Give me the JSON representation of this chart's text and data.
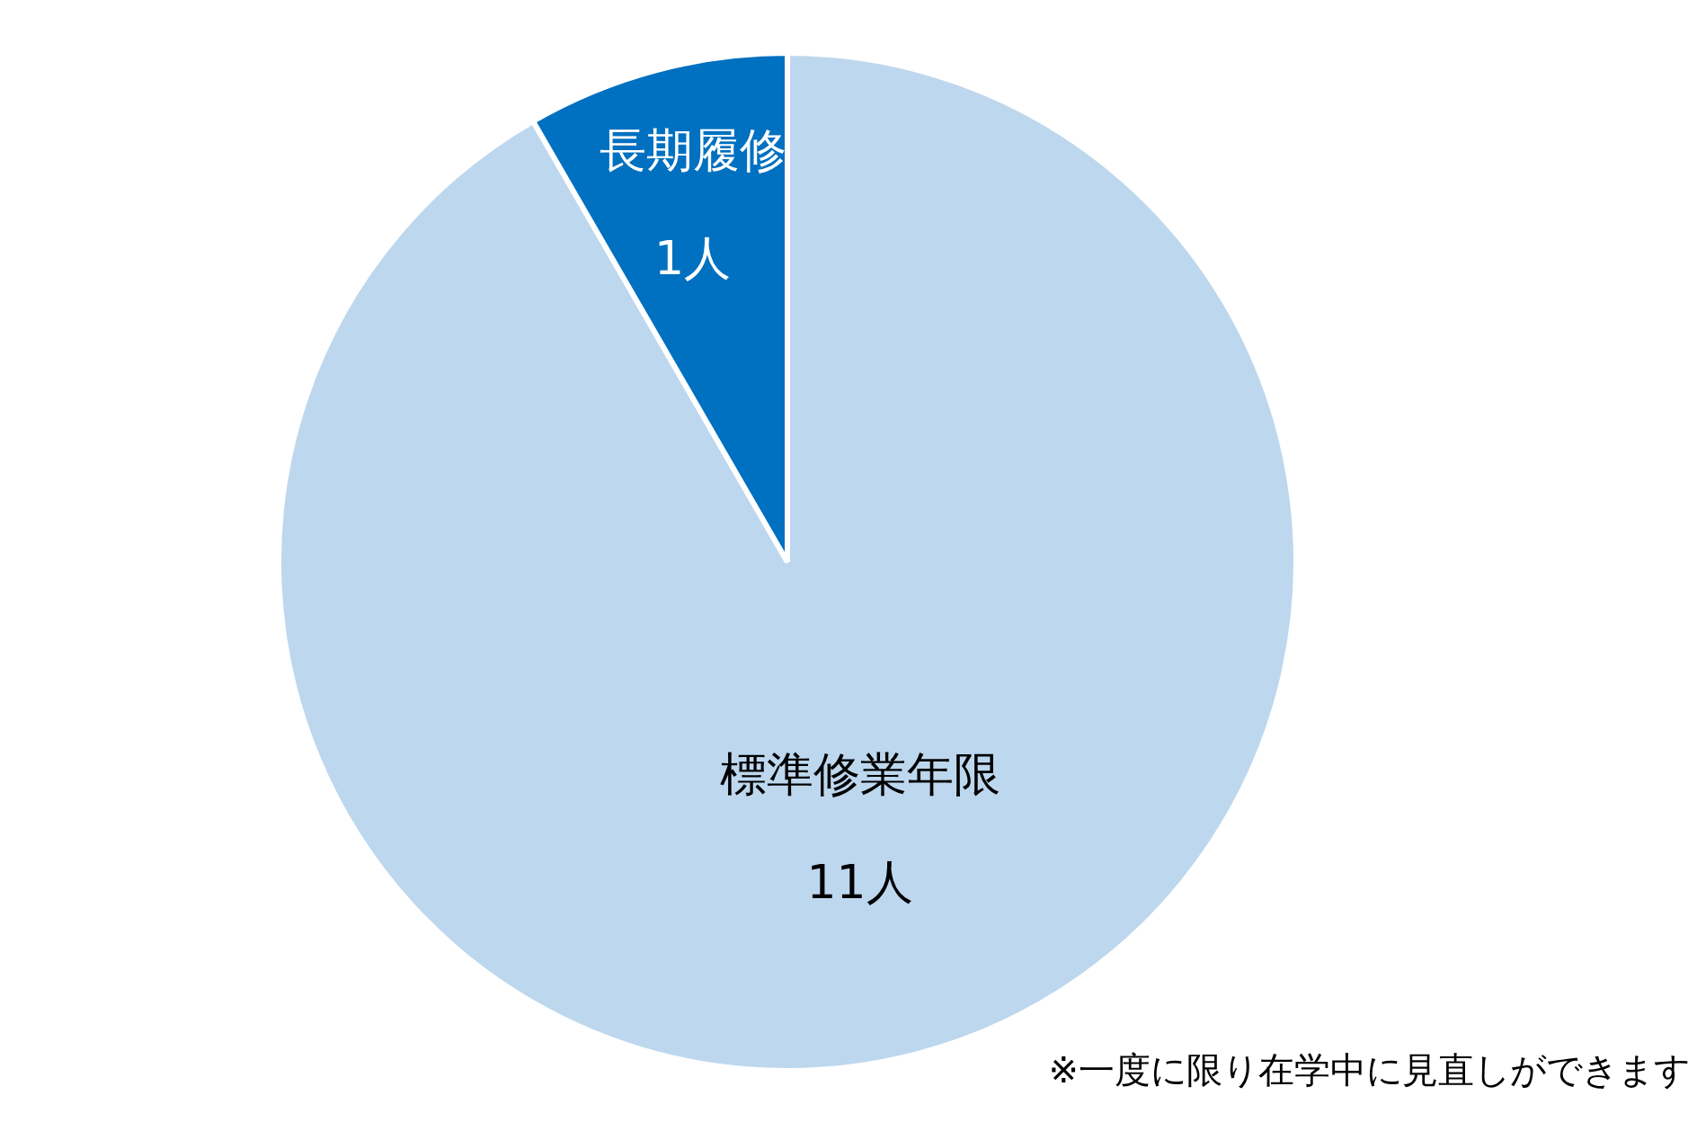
{
  "chart_data": {
    "type": "pie",
    "categories": [
      "標準修業年限",
      "長期履修"
    ],
    "values": [
      11,
      1
    ],
    "colors": [
      "#bdd7ee",
      "#0070c0"
    ],
    "value_labels": [
      "11人",
      "1人"
    ],
    "legend": false,
    "annotations": [
      "※一度に限り在学中に見直しができます"
    ]
  }
}
